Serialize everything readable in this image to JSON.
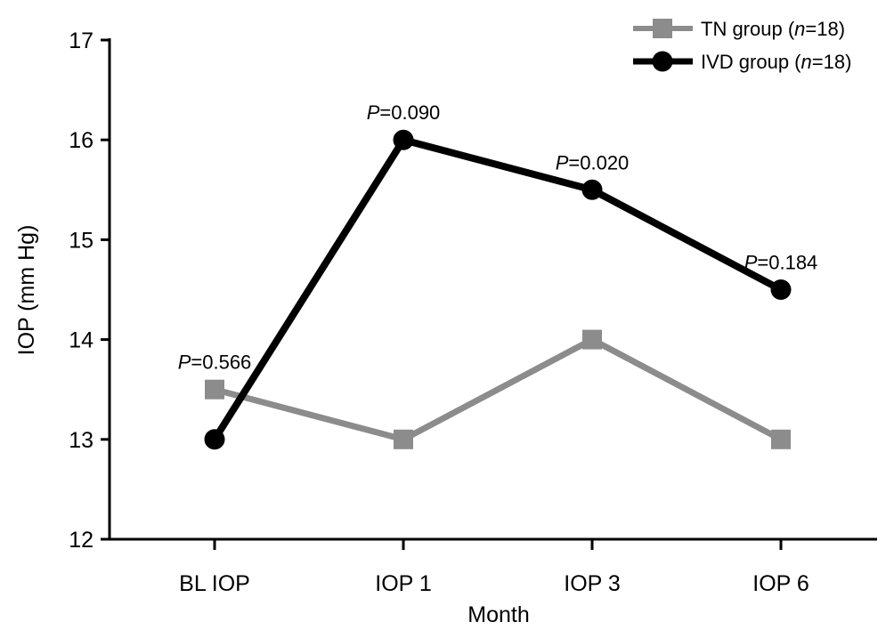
{
  "chart_data": {
    "type": "line",
    "xlabel": "Month",
    "ylabel": "IOP (mm Hg)",
    "categories": [
      "BL IOP",
      "IOP 1",
      "IOP 3",
      "IOP 6"
    ],
    "ylim": [
      12,
      17
    ],
    "yticks": [
      12,
      13,
      14,
      15,
      16,
      17
    ],
    "grid": false,
    "legend_position": "top-right",
    "series": [
      {
        "name_prefix": "TN group (",
        "name_n": "n",
        "name_suffix": "=18)",
        "values": [
          13.5,
          13.0,
          14.0,
          13.0
        ],
        "color": "#8c8c8c",
        "marker": "square"
      },
      {
        "name_prefix": "IVD group (",
        "name_n": "n",
        "name_suffix": "=18)",
        "values": [
          13.0,
          16.0,
          15.5,
          14.5
        ],
        "color": "#000000",
        "marker": "circle"
      }
    ],
    "annotations": [
      {
        "category": "BL IOP",
        "y": 13.5,
        "p": "P",
        "text": "=0.566"
      },
      {
        "category": "IOP 1",
        "y": 16.0,
        "p": "P",
        "text": "=0.090"
      },
      {
        "category": "IOP 3",
        "y": 15.5,
        "p": "P",
        "text": "=0.020"
      },
      {
        "category": "IOP 6",
        "y": 14.5,
        "p": "P",
        "text": "=0.184"
      }
    ]
  }
}
